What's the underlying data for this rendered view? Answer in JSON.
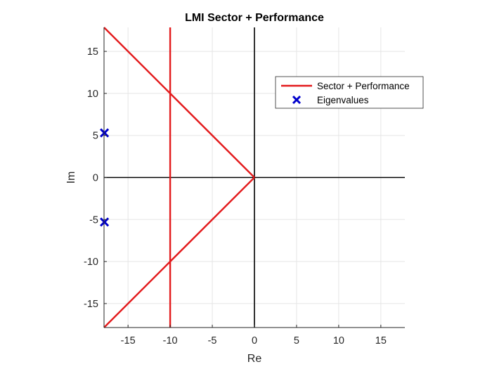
{
  "chart_data": {
    "type": "line",
    "title": "LMI Sector + Performance",
    "xlabel": "Re",
    "ylabel": "Im",
    "xlim": [
      -17.85,
      17.85
    ],
    "ylim": [
      -17.85,
      17.85
    ],
    "xticks": [
      -15,
      -10,
      -5,
      0,
      5,
      10,
      15
    ],
    "yticks": [
      -15,
      -10,
      -5,
      0,
      5,
      10,
      15
    ],
    "grid": true,
    "legend_position": "top-right",
    "series": [
      {
        "name": "Sector + Performance",
        "kind": "line",
        "color": "#e31a1c",
        "segments": [
          [
            [
              0,
              0
            ],
            [
              -17.85,
              17.85
            ]
          ],
          [
            [
              0,
              0
            ],
            [
              -17.85,
              -17.85
            ]
          ],
          [
            [
              -10,
              -17.85
            ],
            [
              -10,
              17.85
            ]
          ]
        ]
      },
      {
        "name": "Eigenvalues",
        "kind": "marker",
        "marker": "x",
        "color": "#0000cc",
        "points": [
          [
            -17.8,
            5.3
          ],
          [
            -17.8,
            -5.3
          ]
        ]
      }
    ],
    "reference_axes": {
      "color": "#000000",
      "lines": [
        "x=0",
        "y=0"
      ]
    }
  },
  "colors": {
    "grid": "#e5e5e5",
    "axis": "#262626",
    "background": "#ffffff"
  }
}
